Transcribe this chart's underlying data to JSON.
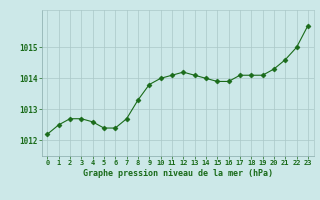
{
  "x": [
    0,
    1,
    2,
    3,
    4,
    5,
    6,
    7,
    8,
    9,
    10,
    11,
    12,
    13,
    14,
    15,
    16,
    17,
    18,
    19,
    20,
    21,
    22,
    23
  ],
  "y": [
    1012.2,
    1012.5,
    1012.7,
    1012.7,
    1012.6,
    1012.4,
    1012.4,
    1012.7,
    1013.3,
    1013.8,
    1014.0,
    1014.1,
    1014.2,
    1014.1,
    1014.0,
    1013.9,
    1013.9,
    1014.1,
    1014.1,
    1014.1,
    1014.3,
    1014.6,
    1015.0,
    1015.7
  ],
  "line_color": "#1a6b1a",
  "marker": "D",
  "marker_size": 2.5,
  "bg_color": "#cce8e8",
  "grid_color": "#aac8c8",
  "xlabel": "Graphe pression niveau de la mer (hPa)",
  "xlabel_color": "#1a6b1a",
  "tick_color": "#1a6b1a",
  "yticks": [
    1012,
    1013,
    1014,
    1015
  ],
  "ylim": [
    1011.5,
    1016.2
  ],
  "xlim": [
    -0.5,
    23.5
  ],
  "xticks": [
    0,
    1,
    2,
    3,
    4,
    5,
    6,
    7,
    8,
    9,
    10,
    11,
    12,
    13,
    14,
    15,
    16,
    17,
    18,
    19,
    20,
    21,
    22,
    23
  ]
}
